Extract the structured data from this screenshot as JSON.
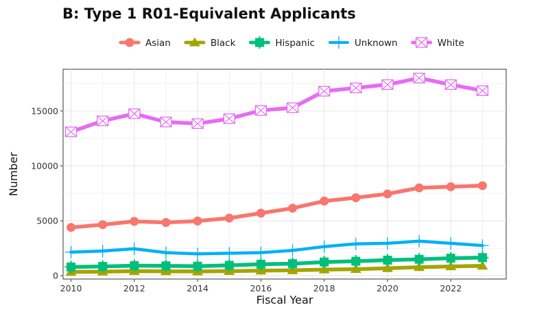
{
  "chart_data": {
    "type": "line",
    "title": "B: Type 1 R01-Equivalent Applicants",
    "xlabel": "Fiscal Year",
    "ylabel": "Number",
    "xlim": [
      2009.75,
      2023.75
    ],
    "ylim": [
      -300,
      18800
    ],
    "xticks": [
      2010,
      2012,
      2014,
      2016,
      2018,
      2020,
      2022
    ],
    "yticks": [
      0,
      5000,
      10000,
      15000
    ],
    "grid": true,
    "legend_position": "top",
    "x": [
      2010,
      2011,
      2012,
      2013,
      2014,
      2015,
      2016,
      2017,
      2018,
      2019,
      2020,
      2021,
      2022,
      2023
    ],
    "series": [
      {
        "name": "Asian",
        "color": "#F8766D",
        "marker": "circle",
        "values": [
          4400,
          4650,
          4950,
          4850,
          4980,
          5250,
          5700,
          6150,
          6800,
          7100,
          7450,
          8000,
          8100,
          8200
        ]
      },
      {
        "name": "Black",
        "color": "#A3A500",
        "marker": "triangle",
        "values": [
          350,
          370,
          420,
          400,
          390,
          420,
          460,
          490,
          560,
          600,
          680,
          780,
          850,
          900
        ]
      },
      {
        "name": "Hispanic",
        "color": "#00BF7D",
        "marker": "square-cross",
        "values": [
          800,
          850,
          920,
          900,
          870,
          950,
          1050,
          1100,
          1250,
          1320,
          1420,
          1500,
          1600,
          1650
        ]
      },
      {
        "name": "Unknown",
        "color": "#00B0F6",
        "marker": "plus",
        "values": [
          2150,
          2250,
          2450,
          2100,
          2000,
          2050,
          2100,
          2300,
          2650,
          2900,
          2950,
          3150,
          2950,
          2750
        ]
      },
      {
        "name": "White",
        "color": "#E76BF3",
        "marker": "square-x",
        "values": [
          13100,
          14100,
          14750,
          14000,
          13850,
          14300,
          15050,
          15300,
          16800,
          17100,
          17400,
          18000,
          17400,
          16850
        ]
      }
    ]
  }
}
